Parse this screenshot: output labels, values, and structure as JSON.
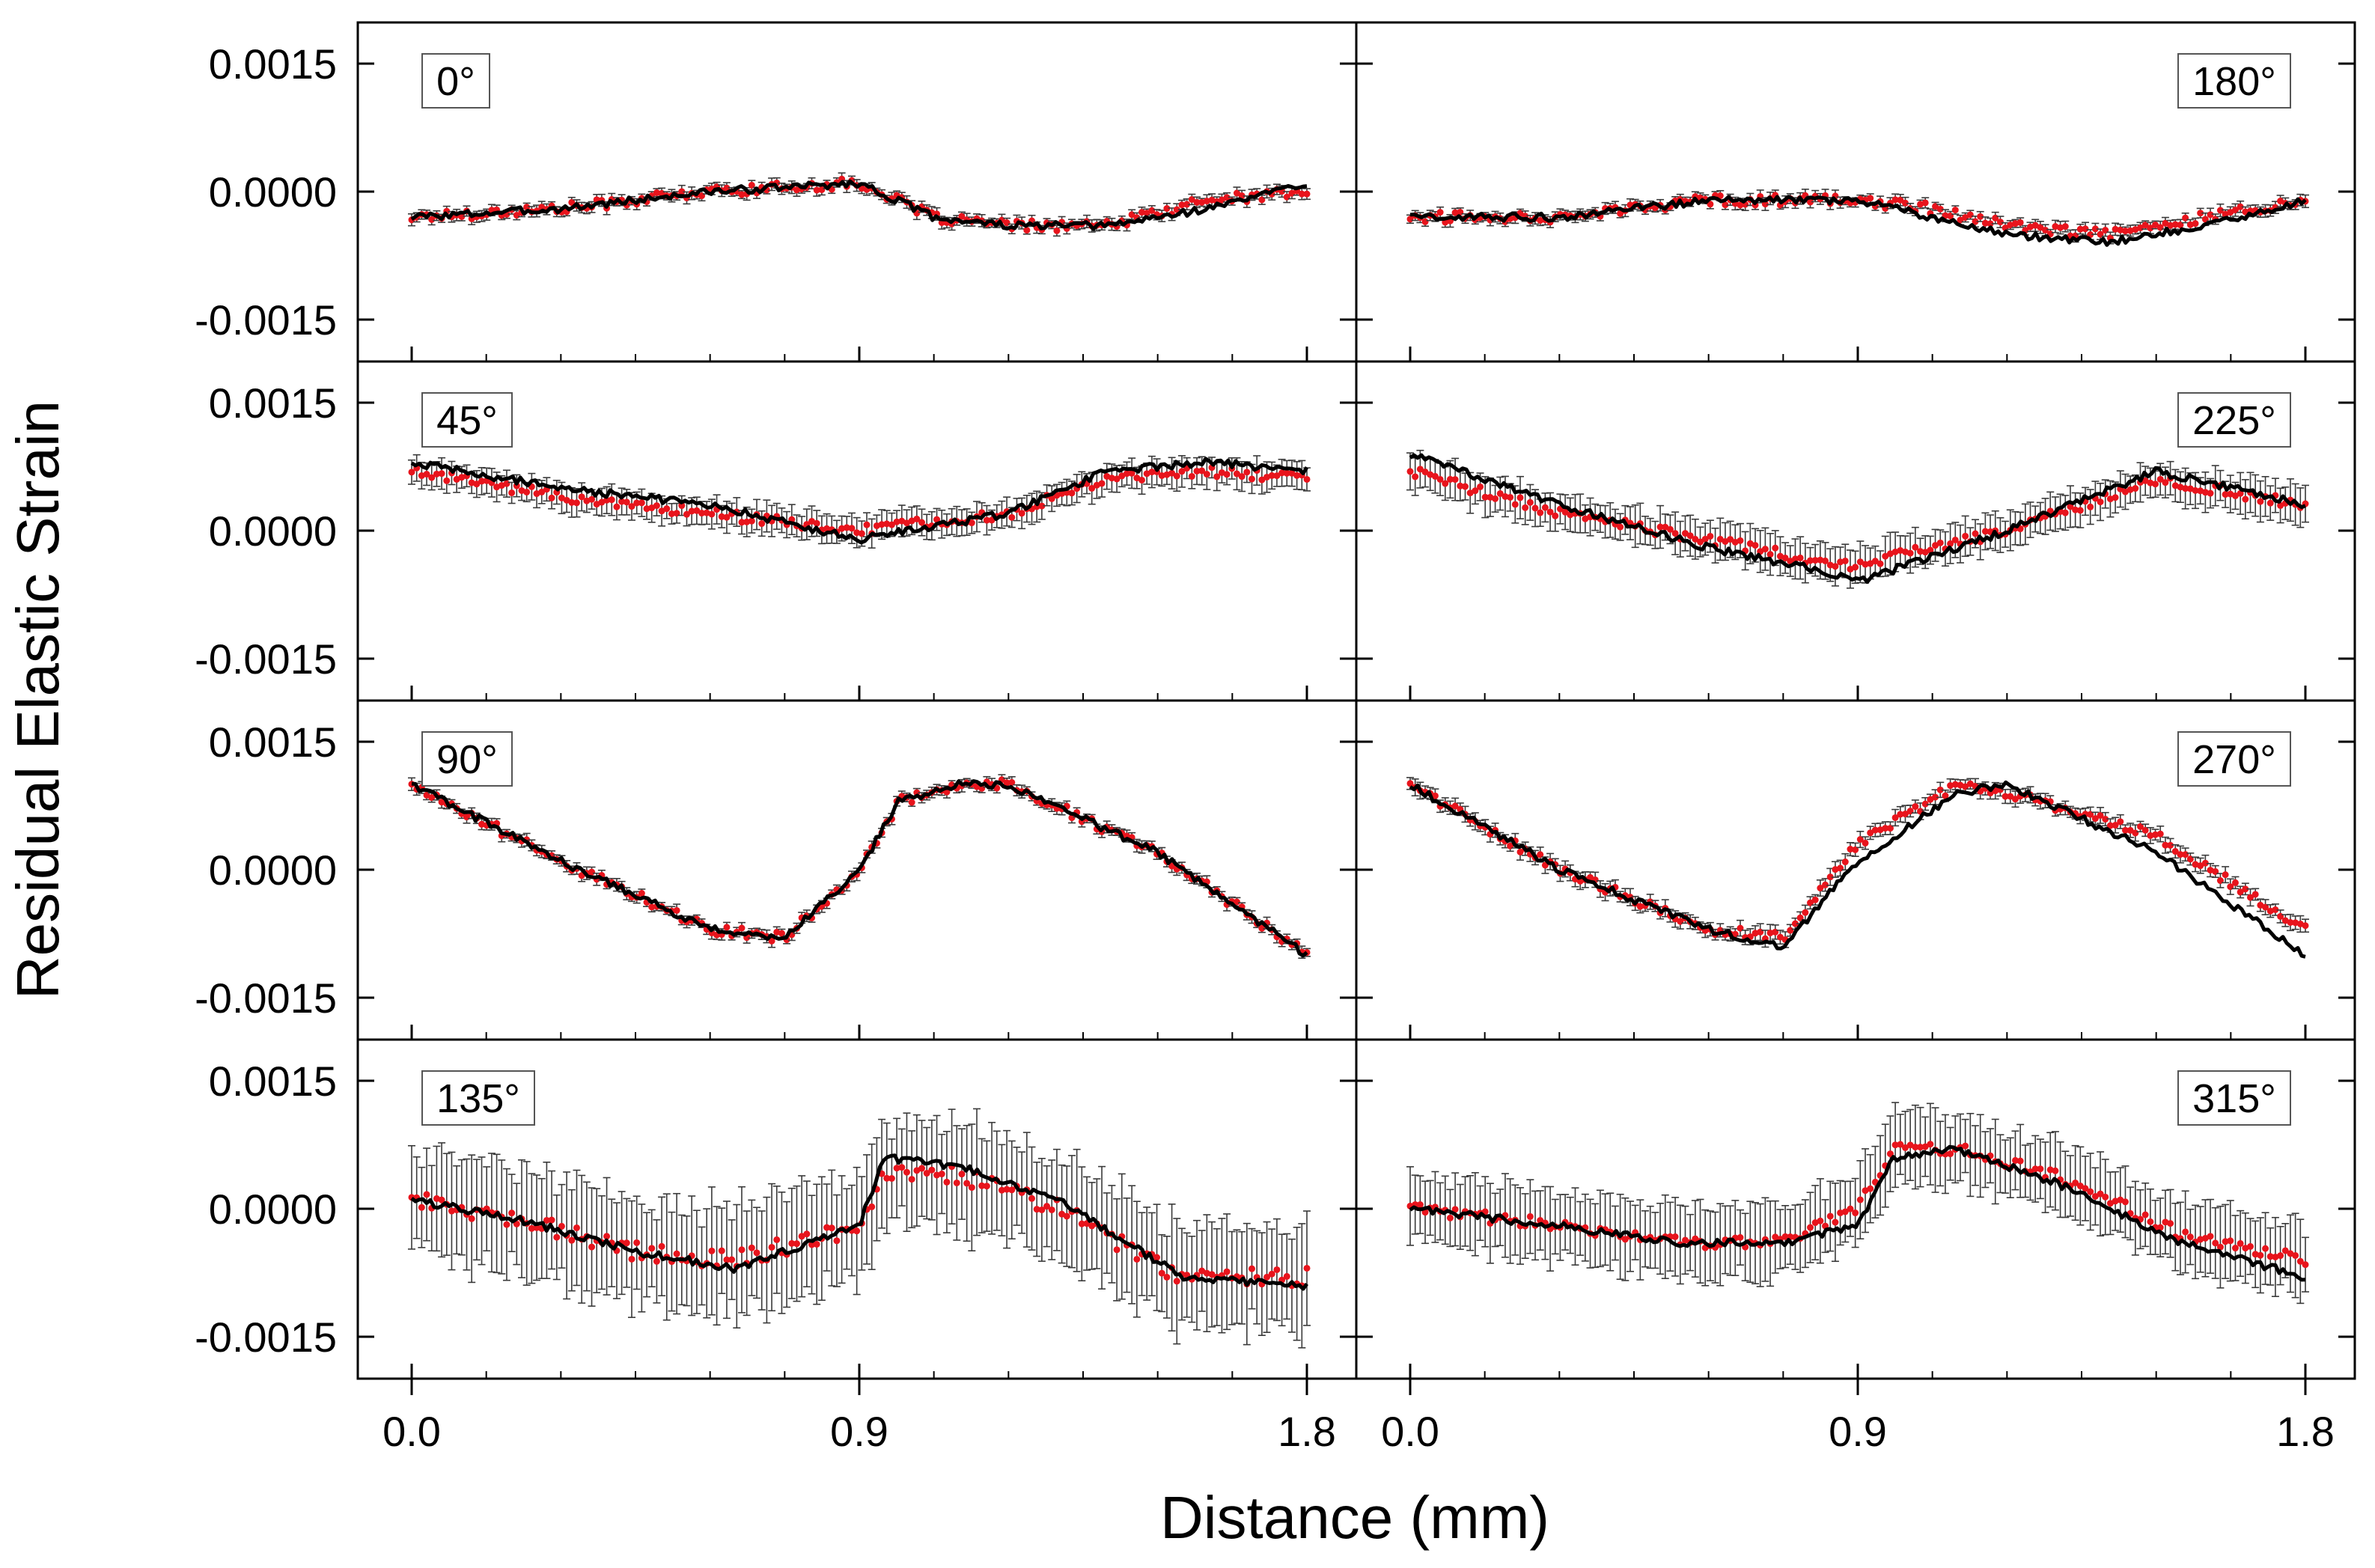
{
  "chart_data": {
    "type": "scatter",
    "layout": "4x2 grid of panels sharing x and y axes",
    "xlabel": "Distance (mm)",
    "ylabel": "Residual Elastic Strain",
    "xlim": [
      0,
      1.8
    ],
    "ylim": [
      -0.002,
      0.002
    ],
    "x_ticks": [
      "0.0",
      "0.9",
      "1.8"
    ],
    "y_ticks": [
      "0.0015",
      "0.0000",
      "-0.0015"
    ],
    "series_styles": {
      "measured": {
        "marker": "dot",
        "color": "#e8141c",
        "errorbar_color": "#3a3a3a"
      },
      "model": {
        "line": "solid",
        "color": "#000000"
      }
    },
    "panels": [
      {
        "label": "0°",
        "err": 6e-05,
        "x": [
          0,
          0.3,
          0.6,
          0.9,
          1.05,
          1.2,
          1.4,
          1.6,
          1.8
        ],
        "model": [
          -0.0003,
          -0.0002,
          0.0,
          0.0001,
          -0.0003,
          -0.0004,
          -0.0004,
          -0.0002,
          0.0001
        ],
        "measured": [
          -0.0003,
          -0.0002,
          0.0,
          0.0001,
          -0.0003,
          -0.0004,
          -0.0004,
          -0.0001,
          0.0
        ]
      },
      {
        "label": "180°",
        "err": 6e-05,
        "x": [
          0,
          0.3,
          0.6,
          0.9,
          1.05,
          1.2,
          1.4,
          1.6,
          1.8
        ],
        "model": [
          -0.0003,
          -0.0003,
          -0.0001,
          -0.0001,
          -0.0003,
          -0.0005,
          -0.0006,
          -0.0004,
          -0.0001
        ],
        "measured": [
          -0.0003,
          -0.0003,
          -0.0001,
          -0.0001,
          -0.0002,
          -0.0004,
          -0.0005,
          -0.0003,
          -0.0001
        ]
      },
      {
        "label": "45°",
        "err": 0.00015,
        "x": [
          0,
          0.3,
          0.6,
          0.9,
          1.2,
          1.4,
          1.6,
          1.8
        ],
        "model": [
          0.0008,
          0.0005,
          0.0003,
          -0.0001,
          0.0002,
          0.0007,
          0.0008,
          0.0007
        ],
        "measured": [
          0.0007,
          0.0004,
          0.0002,
          0.0,
          0.0002,
          0.0006,
          0.0007,
          0.0006
        ]
      },
      {
        "label": "225°",
        "err": 0.0002,
        "x": [
          0,
          0.3,
          0.6,
          0.85,
          0.9,
          1.2,
          1.5,
          1.8
        ],
        "model": [
          0.0009,
          0.0003,
          -0.0002,
          -0.0005,
          -0.0006,
          0.0,
          0.0007,
          0.0003
        ],
        "measured": [
          0.0007,
          0.0002,
          -0.0001,
          -0.0004,
          -0.0004,
          0.0,
          0.0006,
          0.0003
        ]
      },
      {
        "label": "90°",
        "err": 6e-05,
        "x": [
          0,
          0.3,
          0.6,
          0.75,
          0.9,
          0.98,
          1.1,
          1.2,
          1.5,
          1.8
        ],
        "model": [
          0.001,
          0.0001,
          -0.0007,
          -0.0008,
          0.0,
          0.0008,
          0.001,
          0.001,
          0.0002,
          -0.001
        ],
        "measured": [
          0.001,
          0.0001,
          -0.0007,
          -0.0008,
          0.0,
          0.0008,
          0.001,
          0.001,
          0.0002,
          -0.001
        ]
      },
      {
        "label": "270°",
        "err": 8e-05,
        "x": [
          0,
          0.3,
          0.6,
          0.75,
          0.9,
          1.1,
          1.2,
          1.5,
          1.8
        ],
        "model": [
          0.001,
          0.0,
          -0.0007,
          -0.0009,
          0.0001,
          0.0009,
          0.001,
          0.0002,
          -0.001
        ],
        "measured": [
          0.001,
          0.0,
          -0.0007,
          -0.0008,
          0.0003,
          0.001,
          0.0009,
          0.0004,
          -0.0007
        ]
      },
      {
        "label": "135°",
        "err": 0.0006,
        "x": [
          0,
          0.2,
          0.45,
          0.65,
          0.9,
          0.95,
          1.1,
          1.3,
          1.55,
          1.8
        ],
        "model": [
          0.0001,
          -0.0001,
          -0.0005,
          -0.0007,
          -0.0002,
          0.0006,
          0.0005,
          0.0001,
          -0.0008,
          -0.0009
        ],
        "measured": [
          0.0001,
          -0.0001,
          -0.0005,
          -0.0006,
          -0.0002,
          0.0004,
          0.0004,
          0.0,
          -0.0008,
          -0.0008
        ]
      },
      {
        "label": "315°",
        "err": 0.0004,
        "x": [
          0,
          0.3,
          0.55,
          0.75,
          0.9,
          0.97,
          1.1,
          1.3,
          1.55,
          1.8
        ],
        "model": [
          0.0,
          -0.0002,
          -0.0004,
          -0.0004,
          -0.0002,
          0.0006,
          0.0007,
          0.0003,
          -0.0004,
          -0.0008
        ],
        "measured": [
          0.0,
          -0.0002,
          -0.0004,
          -0.0004,
          0.0,
          0.0007,
          0.0007,
          0.0004,
          -0.0003,
          -0.0006
        ]
      }
    ]
  }
}
